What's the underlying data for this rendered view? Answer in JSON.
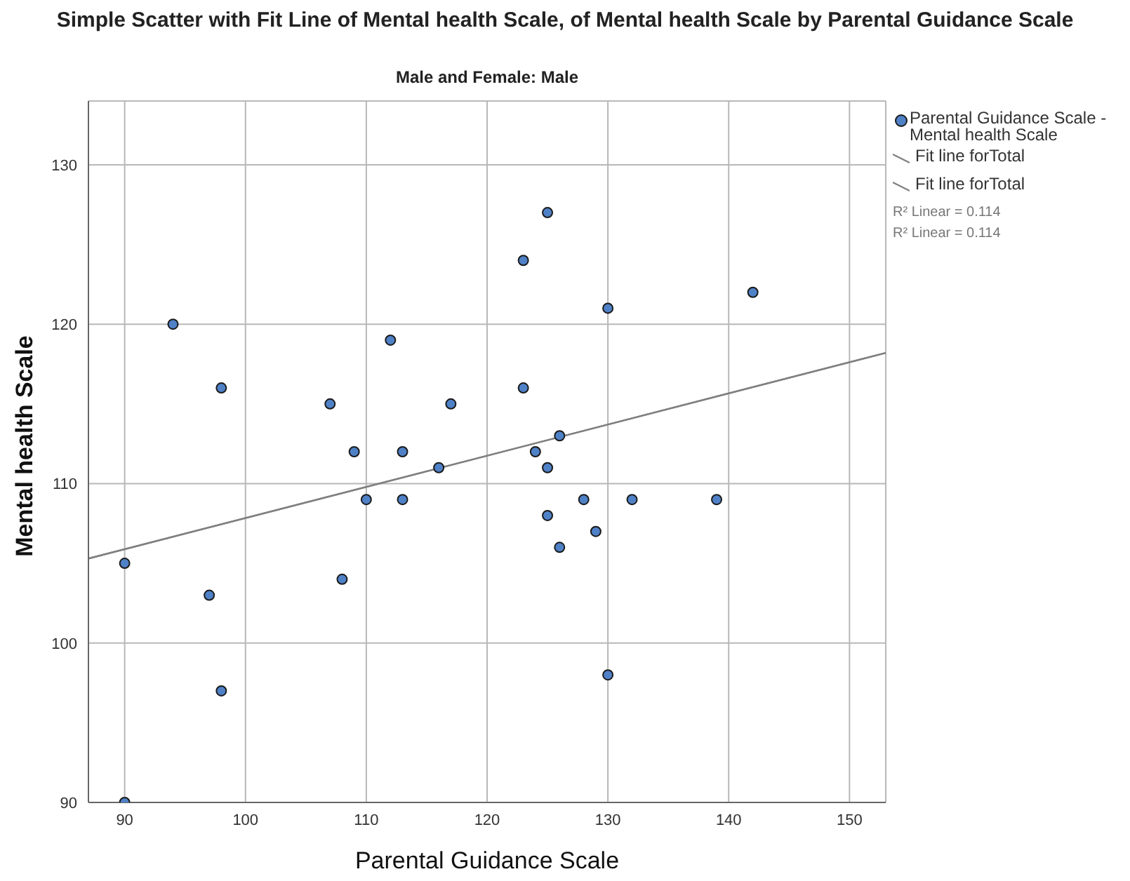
{
  "chart_data": {
    "type": "scatter",
    "title": "Simple Scatter with Fit Line of Mental health Scale,  of Mental health Scale by Parental Guidance Scale",
    "subtitle": "Male and Female: Male",
    "xlabel": "Parental Guidance Scale",
    "ylabel": "Mental health Scale",
    "xlim": [
      87,
      153
    ],
    "ylim": [
      90,
      134
    ],
    "xticks": [
      90,
      100,
      110,
      120,
      130,
      140,
      150
    ],
    "yticks": [
      90,
      100,
      110,
      120,
      130
    ],
    "grid": true,
    "legend": "right",
    "series": [
      {
        "name": "Parental Guidance Scale - Mental health Scale",
        "marker": "circle",
        "color": "#4f81c7",
        "x": [
          90,
          90,
          94,
          98,
          98,
          97,
          107,
          108,
          109,
          110,
          112,
          113,
          113,
          116,
          117,
          123,
          123,
          124,
          125,
          125,
          125,
          126,
          126,
          128,
          129,
          130,
          130,
          132,
          139,
          142
        ],
        "values": [
          90,
          105,
          120,
          116,
          97,
          103,
          115,
          104,
          112,
          109,
          119,
          112,
          109,
          111,
          115,
          124,
          116,
          112,
          127,
          111,
          108,
          113,
          106,
          109,
          107,
          121,
          98,
          109,
          109,
          122
        ]
      },
      {
        "name": "Fit line forTotal",
        "type": "line",
        "marker": "none",
        "color": "#808080",
        "x": [
          87,
          153
        ],
        "values": [
          105.3,
          118.2
        ]
      },
      {
        "name": "Fit line forTotal",
        "type": "line",
        "marker": "none",
        "color": "#808080",
        "x": [
          87,
          153
        ],
        "values": [
          105.3,
          118.2
        ]
      }
    ],
    "annotations": [
      "R² Linear = 0.114",
      "R² Linear = 0.114"
    ]
  }
}
